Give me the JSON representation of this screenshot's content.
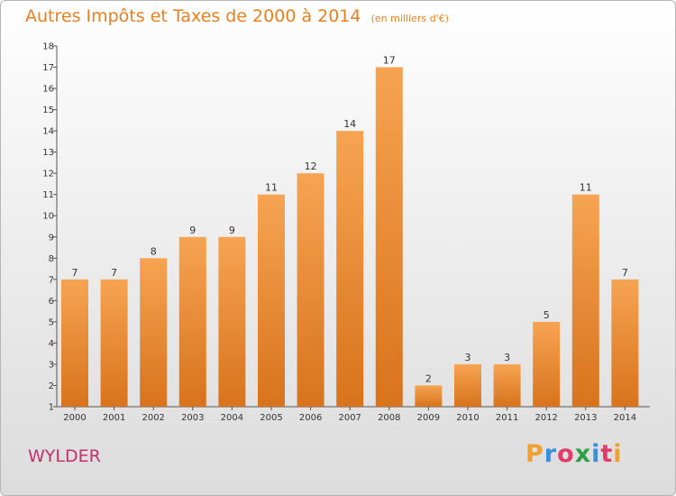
{
  "chart_data": {
    "type": "bar",
    "title": "Autres Impôts et Taxes de 2000 à 2014",
    "subtitle": "(en milliers d'€)",
    "categories": [
      "2000",
      "2001",
      "2002",
      "2003",
      "2004",
      "2005",
      "2006",
      "2007",
      "2008",
      "2009",
      "2010",
      "2011",
      "2012",
      "2013",
      "2014"
    ],
    "values": [
      7,
      7,
      8,
      9,
      9,
      11,
      12,
      14,
      17,
      2,
      3,
      3,
      5,
      11,
      7
    ],
    "ylim": [
      1,
      18
    ],
    "yticks": [
      1,
      2,
      3,
      4,
      5,
      6,
      7,
      8,
      9,
      10,
      11,
      12,
      13,
      14,
      15,
      16,
      17,
      18
    ],
    "bar_color": "#f29a3f",
    "grid": false,
    "xlabel": "",
    "ylabel": ""
  },
  "commune_name": "WYLDER",
  "logo": {
    "letters": [
      "P",
      "r",
      "o",
      "x",
      "i",
      "t",
      "i"
    ],
    "colors": [
      "#f0a030",
      "#3a8fd6",
      "#e03b6a",
      "#2f9e48",
      "#3a8fd6",
      "#e03b6a",
      "#f0a030"
    ]
  },
  "colors": {
    "title": "#ea7f21",
    "commune": "#c0316e"
  }
}
